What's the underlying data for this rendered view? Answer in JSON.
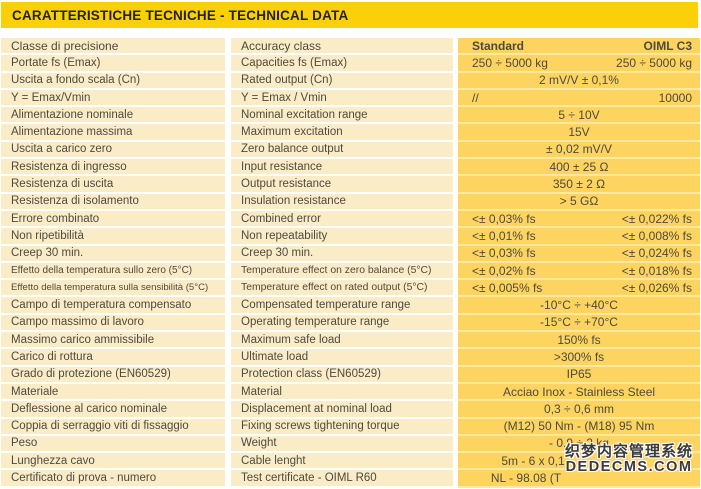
{
  "title": "CARATTERISTICHE TECNICHE - TECHNICAL DATA",
  "colors": {
    "title_bar": "#fbd008",
    "row_cream": "#faecc6",
    "row_yellow": "#fdd45f",
    "separator_yellow": "#fee9a0",
    "text": "#4d4a40"
  },
  "table": {
    "header": {
      "it": "Classe di precisione",
      "en": "Accuracy class",
      "std": "Standard",
      "oiml": "OIML C3"
    },
    "rows": [
      {
        "it": "Portate fs (Emax)",
        "en": "Capacities fs (Emax)",
        "std": "250 ÷ 5000 kg",
        "oiml": "250 ÷ 5000 kg"
      },
      {
        "it": "Uscita a fondo scala (Cn)",
        "en": "Rated output (Cn)",
        "span": "2 mV/V ± 0,1%"
      },
      {
        "it": "Y = Emax/Vmin",
        "en": "Y = Emax / Vmin",
        "std": "//",
        "oiml": "10000"
      },
      {
        "it": "Alimentazione nominale",
        "en": "Nominal excitation range",
        "span": "5 ÷ 10V"
      },
      {
        "it": "Alimentazione massima",
        "en": "Maximum excitation",
        "span": "15V"
      },
      {
        "it": "Uscita a carico zero",
        "en": "Zero balance output",
        "span": "± 0,02 mV/V"
      },
      {
        "it": "Resistenza di ingresso",
        "en": "Input resistance",
        "span": "400 ± 25 Ω"
      },
      {
        "it": "Resistenza di uscita",
        "en": "Output resistance",
        "span": "350 ± 2 Ω"
      },
      {
        "it": "Resistenza di isolamento",
        "en": "Insulation resistance",
        "span": "> 5 GΩ"
      },
      {
        "it": "Errore combinato",
        "en": "Combined error",
        "std": "<± 0,03% fs",
        "oiml": "<± 0,022% fs"
      },
      {
        "it": "Non ripetibilità",
        "en": "Non repeatability",
        "std": "<± 0,01% fs",
        "oiml": "<± 0,008% fs"
      },
      {
        "it": "Creep 30 min.",
        "en": "Creep 30 min.",
        "std": "<± 0,03% fs",
        "oiml": "<± 0,024% fs"
      },
      {
        "it": "Effetto della temperatura sullo zero (5°C)",
        "en": "Temperature effect on zero balance (5°C)",
        "std": "<± 0,02% fs",
        "oiml": "<± 0,018% fs"
      },
      {
        "it": "Effetto della temperatura sulla sensibilità (5°C)",
        "en": "Temperature effect on rated output (5°C)",
        "std": "<± 0,005% fs",
        "oiml": "<± 0,026% fs"
      },
      {
        "it": "Campo di temperatura compensato",
        "en": "Compensated temperature range",
        "span": "-10°C ÷ +40°C"
      },
      {
        "it": "Campo massimo di lavoro",
        "en": "Operating temperature range",
        "span": "-15°C ÷ +70°C"
      },
      {
        "it": "Massimo carico ammissibile",
        "en": "Maximum safe load",
        "span": "150% fs"
      },
      {
        "it": "Carico di rottura",
        "en": "Ultimate load",
        "span": ">300% fs"
      },
      {
        "it": "Grado di protezione (EN60529)",
        "en": "Protection class (EN60529)",
        "span": "IP65"
      },
      {
        "it": "Materiale",
        "en": "Material",
        "span": "Acciao Inox - Stainless Steel"
      },
      {
        "it": "Deflessione al carico nominale",
        "en": "Displacement at nominal load",
        "span": "0,3 ÷ 0,6 mm"
      },
      {
        "it": "Coppia di serraggio viti di fissaggio",
        "en": "Fixing screws tightening torque",
        "span": "(M12) 50 Nm - (M18) 95 Nm"
      },
      {
        "it": "Peso",
        "en": "Weight",
        "span": "- 0,9 ÷ 2 kg"
      },
      {
        "it": "Lunghezza cavo",
        "en": "Cable lenght",
        "span": "5m - 6 x 0,1"
      },
      {
        "it": "Certificato di prova - numero",
        "en": "Test certificate - OIML R60",
        "span": "NL - 98.08 (T"
      }
    ]
  },
  "watermark": {
    "line1": "织梦内容管理系统",
    "line2": "DEDECMS.COM"
  }
}
